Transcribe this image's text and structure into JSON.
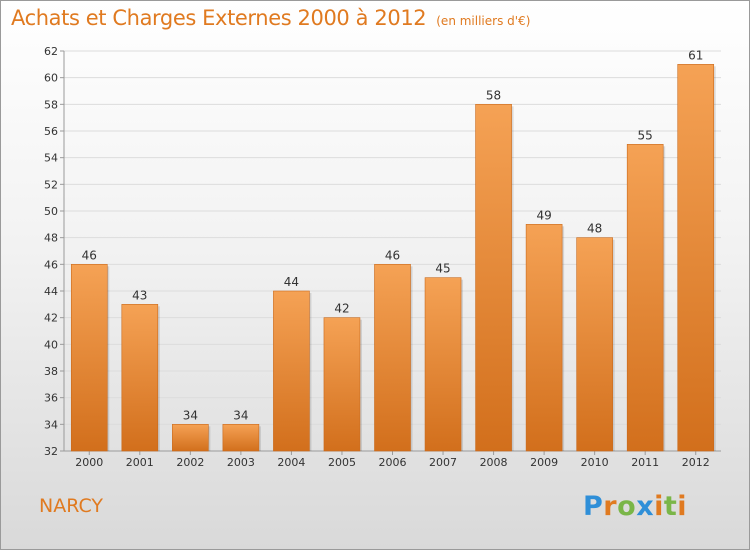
{
  "chart_data": {
    "type": "bar",
    "title": "Achats et Charges Externes 2000 à 2012",
    "unit_note": "(en milliers d'€)",
    "categories": [
      "2000",
      "2001",
      "2002",
      "2003",
      "2004",
      "2005",
      "2006",
      "2007",
      "2008",
      "2009",
      "2010",
      "2011",
      "2012"
    ],
    "values": [
      46,
      43,
      34,
      34,
      44,
      42,
      46,
      45,
      58,
      49,
      48,
      55,
      61
    ],
    "ylim": [
      32,
      62
    ],
    "yticks": [
      32,
      34,
      36,
      38,
      40,
      42,
      44,
      46,
      48,
      50,
      52,
      54,
      56,
      58,
      60,
      62
    ],
    "grid": true,
    "bar_color": "#f0923a",
    "title_color": "#e07a20"
  },
  "place_name": "NARCY",
  "logo": {
    "text": "Proxiti",
    "letter_colors": [
      "#2f8fd8",
      "#e07a20",
      "#7ab648",
      "#2f8fd8",
      "#e07a20",
      "#7ab648",
      "#e07a20"
    ]
  }
}
